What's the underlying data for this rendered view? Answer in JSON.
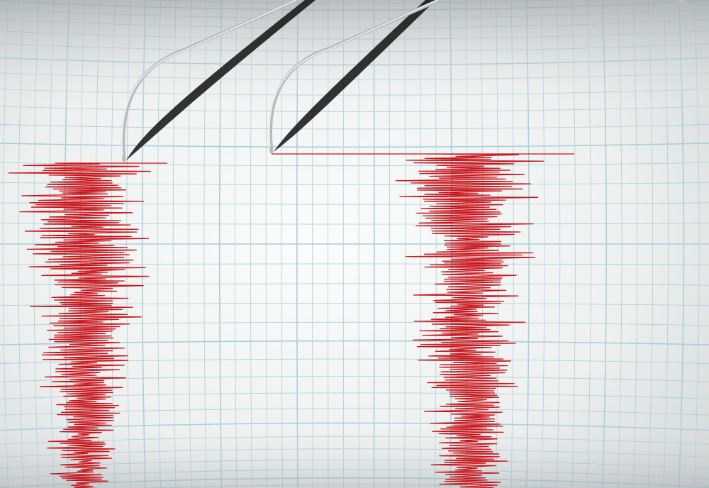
{
  "colors": {
    "paper_light": "#f7f8f8",
    "paper_dark": "#cfd3d4",
    "grid": "#a9cfd8",
    "trace": "#c8141a",
    "needle": "#b9bcbf",
    "needle_shadow": "#111111"
  },
  "traces": [
    {
      "name": "left-seismogram",
      "amplitude_profile": "strong-start-decaying"
    },
    {
      "name": "right-seismogram",
      "amplitude_profile": "strong-start-decaying"
    }
  ]
}
